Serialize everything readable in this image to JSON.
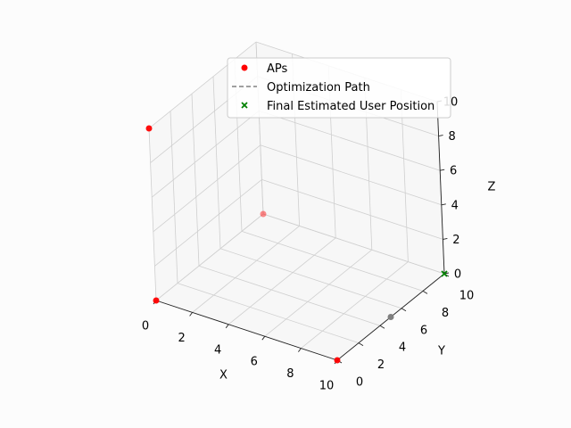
{
  "chart_data": {
    "type": "scatter",
    "projection": "3d",
    "xlabel": "X",
    "ylabel": "Y",
    "zlabel": "Z",
    "xlim": [
      0,
      10
    ],
    "ylim": [
      0,
      10
    ],
    "zlim": [
      0,
      10
    ],
    "xticks": [
      "0",
      "2",
      "4",
      "6",
      "8",
      "10"
    ],
    "yticks": [
      "0",
      "2",
      "4",
      "6",
      "8",
      "10"
    ],
    "zticks": [
      "0",
      "2",
      "4",
      "6",
      "8",
      "10"
    ],
    "grid": true,
    "legend_position": "top-right",
    "series": [
      {
        "name": "APs",
        "marker": "circle",
        "color": "#ff0000",
        "points": [
          {
            "x": 0,
            "y": 0,
            "z": 0
          },
          {
            "x": 10,
            "y": 0,
            "z": 0
          },
          {
            "x": 0,
            "y": 10,
            "z": 0
          },
          {
            "x": 0,
            "y": 0,
            "z": 10
          }
        ]
      },
      {
        "name": "Optimization Path",
        "marker": "dashed-line",
        "color": "#808080",
        "points": [
          {
            "x": 10,
            "y": 0,
            "z": 0
          },
          {
            "x": 10,
            "y": 10,
            "z": 0
          }
        ],
        "endpoint_marker": {
          "x": 10,
          "y": 5,
          "z": 0
        }
      },
      {
        "name": "Final Estimated User Position",
        "marker": "x",
        "color": "#008000",
        "points": [
          {
            "x": 10,
            "y": 10,
            "z": 0
          }
        ]
      }
    ]
  }
}
